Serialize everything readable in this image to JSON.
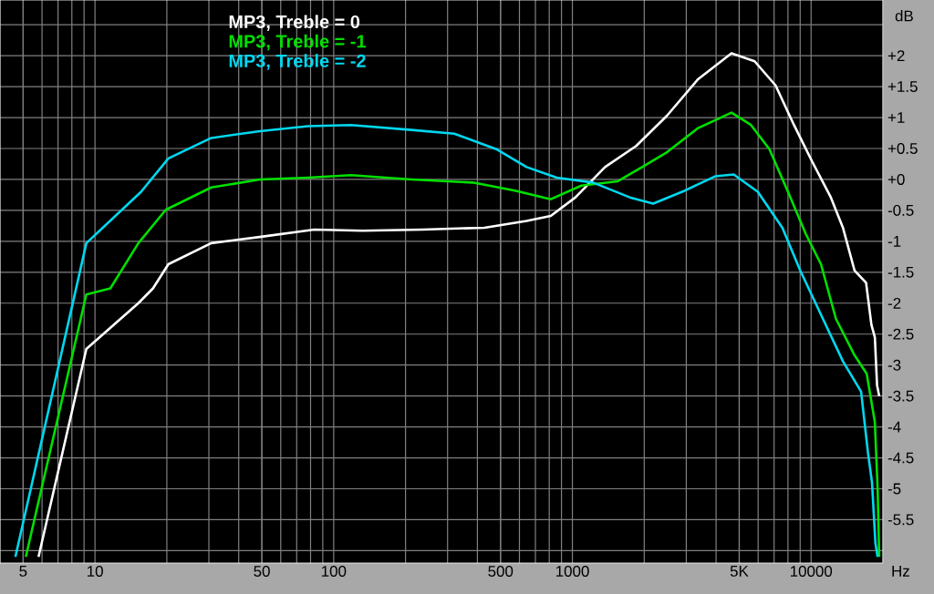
{
  "chart_data": {
    "type": "line",
    "xlabel": "Hz",
    "ylabel": "dB",
    "log": "x",
    "grid": true,
    "legend": "top left",
    "line_style": "solid",
    "marker": "none",
    "xlim": [
      4,
      20000
    ],
    "ylim": [
      -6.2,
      2.9
    ],
    "xticks": [
      5,
      10,
      50,
      100,
      500,
      1000,
      {
        "value": 5000,
        "label": "5K"
      },
      10000
    ],
    "yticks": [
      {
        "value": 2.5,
        "label": null
      },
      {
        "value": 2,
        "label": "+2"
      },
      {
        "value": 1.5,
        "label": "+1.5"
      },
      {
        "value": 1,
        "label": "+1"
      },
      {
        "value": 0.5,
        "label": "+0.5"
      },
      {
        "value": 0,
        "label": "+0"
      },
      -0.5,
      -1,
      -1.5,
      -2,
      -2.5,
      -3,
      -3.5,
      -4,
      -4.5,
      -5,
      -5.5,
      {
        "value": -6,
        "label": null
      }
    ],
    "series": [
      {
        "name": "MP3, Treble = 0",
        "color": "#ffffff",
        "x": [
          5.8,
          9.2,
          15.2,
          17.5,
          20.3,
          30.7,
          48.9,
          83,
          132,
          237,
          428,
          643,
          812,
          1030,
          1370,
          1850,
          2490,
          3360,
          4640,
          5800,
          7100,
          8480,
          10100,
          12100,
          13600,
          15200,
          17000,
          17900,
          18500,
          18900,
          19300
        ],
        "values": [
          -6.1,
          -2.74,
          -2.0,
          -1.76,
          -1.37,
          -1.03,
          -0.93,
          -0.81,
          -0.83,
          -0.81,
          -0.78,
          -0.67,
          -0.59,
          -0.29,
          0.2,
          0.54,
          1.03,
          1.62,
          2.04,
          1.91,
          1.52,
          0.88,
          0.29,
          -0.29,
          -0.78,
          -1.47,
          -1.67,
          -2.35,
          -2.55,
          -3.33,
          -3.5
        ]
      },
      {
        "name": "MP3, Treble = -1",
        "color": "#00e000",
        "x": [
          5.13,
          9.2,
          11.6,
          15.2,
          19.8,
          30.7,
          49,
          78,
          118,
          212,
          382,
          575,
          812,
          1090,
          1550,
          1960,
          2490,
          3360,
          4640,
          5600,
          6690,
          8000,
          9500,
          11000,
          12700,
          15200,
          17100,
          18500,
          19000,
          19300
        ],
        "values": [
          -6.1,
          -1.86,
          -1.76,
          -1.03,
          -0.49,
          -0.13,
          0,
          0.03,
          0.07,
          0,
          -0.05,
          -0.18,
          -0.32,
          -0.1,
          -0.03,
          0.2,
          0.44,
          0.83,
          1.08,
          0.88,
          0.49,
          -0.2,
          -0.88,
          -1.37,
          -2.25,
          -2.84,
          -3.14,
          -3.92,
          -5.0,
          -6.1
        ]
      },
      {
        "name": "MP3, Treble = -2",
        "color": "#00d8f0",
        "x": [
          4.64,
          9.2,
          15.6,
          20.3,
          30.7,
          49,
          78,
          118,
          212,
          320,
          480,
          643,
          860,
          1220,
          1740,
          2180,
          2960,
          3960,
          4740,
          5980,
          7580,
          9000,
          11200,
          13600,
          16200,
          17300,
          18000,
          18600,
          19000
        ],
        "values": [
          -6.1,
          -1.03,
          -0.2,
          0.34,
          0.67,
          0.78,
          0.86,
          0.88,
          0.8,
          0.74,
          0.49,
          0.2,
          0.03,
          -0.05,
          -0.29,
          -0.39,
          -0.18,
          0.05,
          0.08,
          -0.2,
          -0.78,
          -1.47,
          -2.25,
          -2.94,
          -3.43,
          -4.41,
          -4.9,
          -5.88,
          -6.1
        ]
      }
    ]
  }
}
